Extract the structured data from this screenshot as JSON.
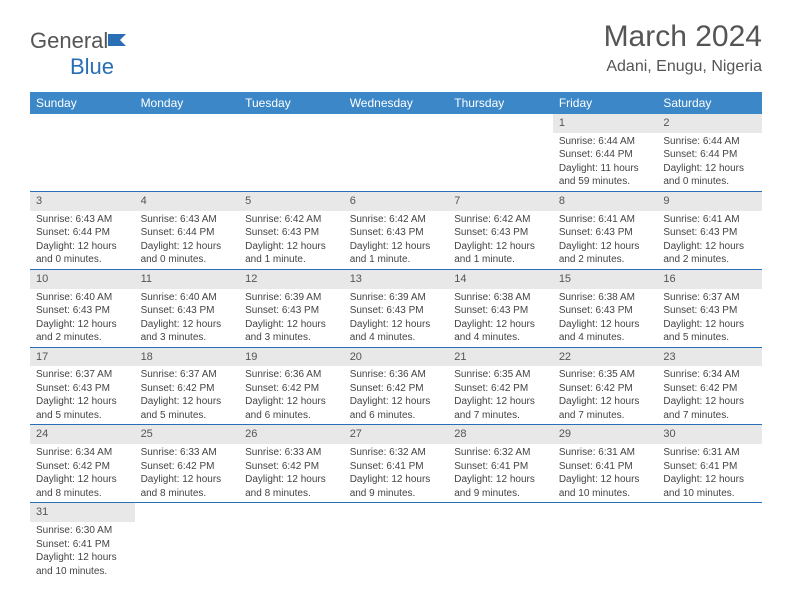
{
  "logo": {
    "part1": "General",
    "part2": "Blue"
  },
  "title": "March 2024",
  "location": "Adani, Enugu, Nigeria",
  "colors": {
    "header_bg": "#3b87c8",
    "header_text": "#ffffff",
    "daynum_bg": "#e8e8e8",
    "border": "#2a6fb5",
    "body_text": "#444444",
    "title_text": "#555555"
  },
  "dayHeaders": [
    "Sunday",
    "Monday",
    "Tuesday",
    "Wednesday",
    "Thursday",
    "Friday",
    "Saturday"
  ],
  "weeks": [
    [
      {
        "n": "",
        "lines": []
      },
      {
        "n": "",
        "lines": []
      },
      {
        "n": "",
        "lines": []
      },
      {
        "n": "",
        "lines": []
      },
      {
        "n": "",
        "lines": []
      },
      {
        "n": "1",
        "lines": [
          "Sunrise: 6:44 AM",
          "Sunset: 6:44 PM",
          "Daylight: 11 hours",
          "and 59 minutes."
        ]
      },
      {
        "n": "2",
        "lines": [
          "Sunrise: 6:44 AM",
          "Sunset: 6:44 PM",
          "Daylight: 12 hours",
          "and 0 minutes."
        ]
      }
    ],
    [
      {
        "n": "3",
        "lines": [
          "Sunrise: 6:43 AM",
          "Sunset: 6:44 PM",
          "Daylight: 12 hours",
          "and 0 minutes."
        ]
      },
      {
        "n": "4",
        "lines": [
          "Sunrise: 6:43 AM",
          "Sunset: 6:44 PM",
          "Daylight: 12 hours",
          "and 0 minutes."
        ]
      },
      {
        "n": "5",
        "lines": [
          "Sunrise: 6:42 AM",
          "Sunset: 6:43 PM",
          "Daylight: 12 hours",
          "and 1 minute."
        ]
      },
      {
        "n": "6",
        "lines": [
          "Sunrise: 6:42 AM",
          "Sunset: 6:43 PM",
          "Daylight: 12 hours",
          "and 1 minute."
        ]
      },
      {
        "n": "7",
        "lines": [
          "Sunrise: 6:42 AM",
          "Sunset: 6:43 PM",
          "Daylight: 12 hours",
          "and 1 minute."
        ]
      },
      {
        "n": "8",
        "lines": [
          "Sunrise: 6:41 AM",
          "Sunset: 6:43 PM",
          "Daylight: 12 hours",
          "and 2 minutes."
        ]
      },
      {
        "n": "9",
        "lines": [
          "Sunrise: 6:41 AM",
          "Sunset: 6:43 PM",
          "Daylight: 12 hours",
          "and 2 minutes."
        ]
      }
    ],
    [
      {
        "n": "10",
        "lines": [
          "Sunrise: 6:40 AM",
          "Sunset: 6:43 PM",
          "Daylight: 12 hours",
          "and 2 minutes."
        ]
      },
      {
        "n": "11",
        "lines": [
          "Sunrise: 6:40 AM",
          "Sunset: 6:43 PM",
          "Daylight: 12 hours",
          "and 3 minutes."
        ]
      },
      {
        "n": "12",
        "lines": [
          "Sunrise: 6:39 AM",
          "Sunset: 6:43 PM",
          "Daylight: 12 hours",
          "and 3 minutes."
        ]
      },
      {
        "n": "13",
        "lines": [
          "Sunrise: 6:39 AM",
          "Sunset: 6:43 PM",
          "Daylight: 12 hours",
          "and 4 minutes."
        ]
      },
      {
        "n": "14",
        "lines": [
          "Sunrise: 6:38 AM",
          "Sunset: 6:43 PM",
          "Daylight: 12 hours",
          "and 4 minutes."
        ]
      },
      {
        "n": "15",
        "lines": [
          "Sunrise: 6:38 AM",
          "Sunset: 6:43 PM",
          "Daylight: 12 hours",
          "and 4 minutes."
        ]
      },
      {
        "n": "16",
        "lines": [
          "Sunrise: 6:37 AM",
          "Sunset: 6:43 PM",
          "Daylight: 12 hours",
          "and 5 minutes."
        ]
      }
    ],
    [
      {
        "n": "17",
        "lines": [
          "Sunrise: 6:37 AM",
          "Sunset: 6:43 PM",
          "Daylight: 12 hours",
          "and 5 minutes."
        ]
      },
      {
        "n": "18",
        "lines": [
          "Sunrise: 6:37 AM",
          "Sunset: 6:42 PM",
          "Daylight: 12 hours",
          "and 5 minutes."
        ]
      },
      {
        "n": "19",
        "lines": [
          "Sunrise: 6:36 AM",
          "Sunset: 6:42 PM",
          "Daylight: 12 hours",
          "and 6 minutes."
        ]
      },
      {
        "n": "20",
        "lines": [
          "Sunrise: 6:36 AM",
          "Sunset: 6:42 PM",
          "Daylight: 12 hours",
          "and 6 minutes."
        ]
      },
      {
        "n": "21",
        "lines": [
          "Sunrise: 6:35 AM",
          "Sunset: 6:42 PM",
          "Daylight: 12 hours",
          "and 7 minutes."
        ]
      },
      {
        "n": "22",
        "lines": [
          "Sunrise: 6:35 AM",
          "Sunset: 6:42 PM",
          "Daylight: 12 hours",
          "and 7 minutes."
        ]
      },
      {
        "n": "23",
        "lines": [
          "Sunrise: 6:34 AM",
          "Sunset: 6:42 PM",
          "Daylight: 12 hours",
          "and 7 minutes."
        ]
      }
    ],
    [
      {
        "n": "24",
        "lines": [
          "Sunrise: 6:34 AM",
          "Sunset: 6:42 PM",
          "Daylight: 12 hours",
          "and 8 minutes."
        ]
      },
      {
        "n": "25",
        "lines": [
          "Sunrise: 6:33 AM",
          "Sunset: 6:42 PM",
          "Daylight: 12 hours",
          "and 8 minutes."
        ]
      },
      {
        "n": "26",
        "lines": [
          "Sunrise: 6:33 AM",
          "Sunset: 6:42 PM",
          "Daylight: 12 hours",
          "and 8 minutes."
        ]
      },
      {
        "n": "27",
        "lines": [
          "Sunrise: 6:32 AM",
          "Sunset: 6:41 PM",
          "Daylight: 12 hours",
          "and 9 minutes."
        ]
      },
      {
        "n": "28",
        "lines": [
          "Sunrise: 6:32 AM",
          "Sunset: 6:41 PM",
          "Daylight: 12 hours",
          "and 9 minutes."
        ]
      },
      {
        "n": "29",
        "lines": [
          "Sunrise: 6:31 AM",
          "Sunset: 6:41 PM",
          "Daylight: 12 hours",
          "and 10 minutes."
        ]
      },
      {
        "n": "30",
        "lines": [
          "Sunrise: 6:31 AM",
          "Sunset: 6:41 PM",
          "Daylight: 12 hours",
          "and 10 minutes."
        ]
      }
    ],
    [
      {
        "n": "31",
        "lines": [
          "Sunrise: 6:30 AM",
          "Sunset: 6:41 PM",
          "Daylight: 12 hours",
          "and 10 minutes."
        ]
      },
      {
        "n": "",
        "lines": []
      },
      {
        "n": "",
        "lines": []
      },
      {
        "n": "",
        "lines": []
      },
      {
        "n": "",
        "lines": []
      },
      {
        "n": "",
        "lines": []
      },
      {
        "n": "",
        "lines": []
      }
    ]
  ]
}
